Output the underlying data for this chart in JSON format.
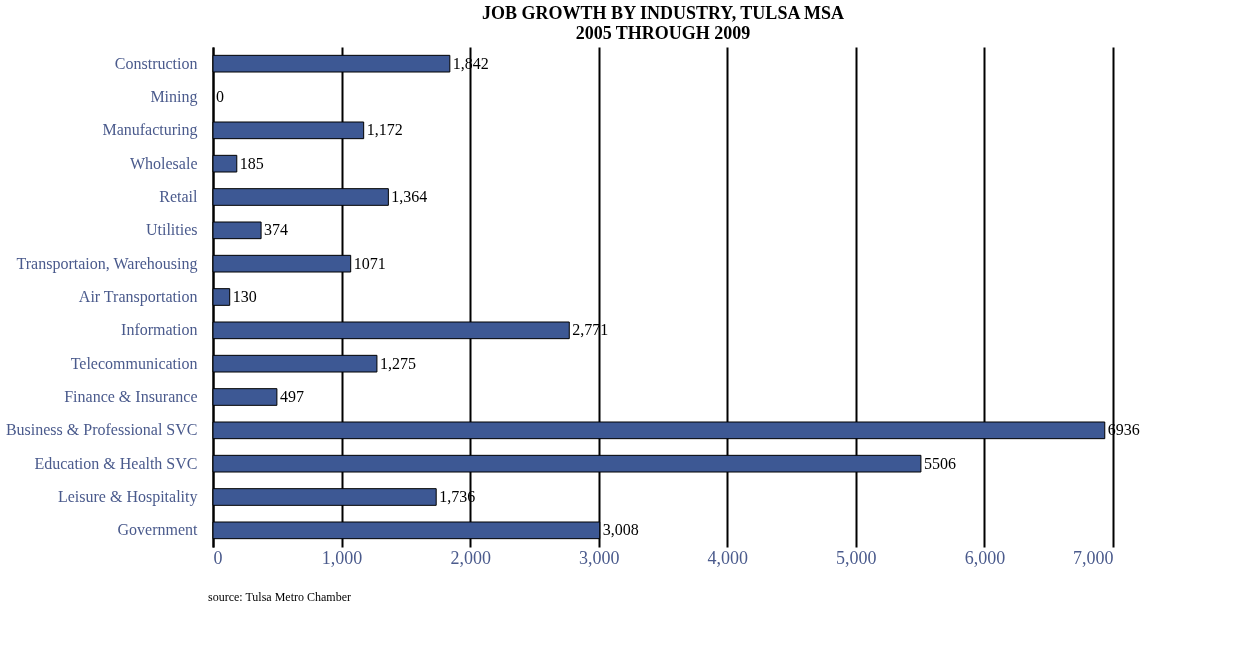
{
  "chart_data": {
    "type": "bar",
    "orientation": "horizontal",
    "title": [
      "JOB GROWTH BY INDUSTRY, TULSA MSA",
      "2005 THROUGH 2009"
    ],
    "categories": [
      "Construction",
      "Mining",
      "Manufacturing",
      "Wholesale",
      "Retail",
      "Utilities",
      "Transportaion, Warehousing",
      "Air Transportation",
      "Information",
      "Telecommunication",
      "Finance & Insurance",
      "Business & Professional SVC",
      "Education & Health SVC",
      "Leisure & Hospitality",
      "Government"
    ],
    "values": [
      1842,
      0,
      1172,
      185,
      1364,
      374,
      1071,
      130,
      2771,
      1275,
      497,
      6936,
      5506,
      1736,
      3008
    ],
    "value_labels": [
      "1,842",
      "0",
      "1,172",
      "185",
      "1,364",
      "374",
      "1071",
      "130",
      "2,771",
      "1,275",
      "497",
      "6936",
      "5506",
      "1,736",
      "3,008"
    ],
    "color": "#3d5894",
    "xlim": [
      0,
      7000
    ],
    "xticks": [
      {
        "value": 0,
        "label": "0"
      },
      {
        "value": 1000,
        "label": "1,000"
      },
      {
        "value": 2000,
        "label": "2,000"
      },
      {
        "value": 3000,
        "label": "3,000"
      },
      {
        "value": 4000,
        "label": "4,000"
      },
      {
        "value": 5000,
        "label": "5,000"
      },
      {
        "value": 6000,
        "label": "6,000"
      },
      {
        "value": 7000,
        "label": "7,000"
      }
    ],
    "grid": "x",
    "legend": false,
    "annotations": [
      "source: Tulsa Metro Chamber"
    ]
  }
}
